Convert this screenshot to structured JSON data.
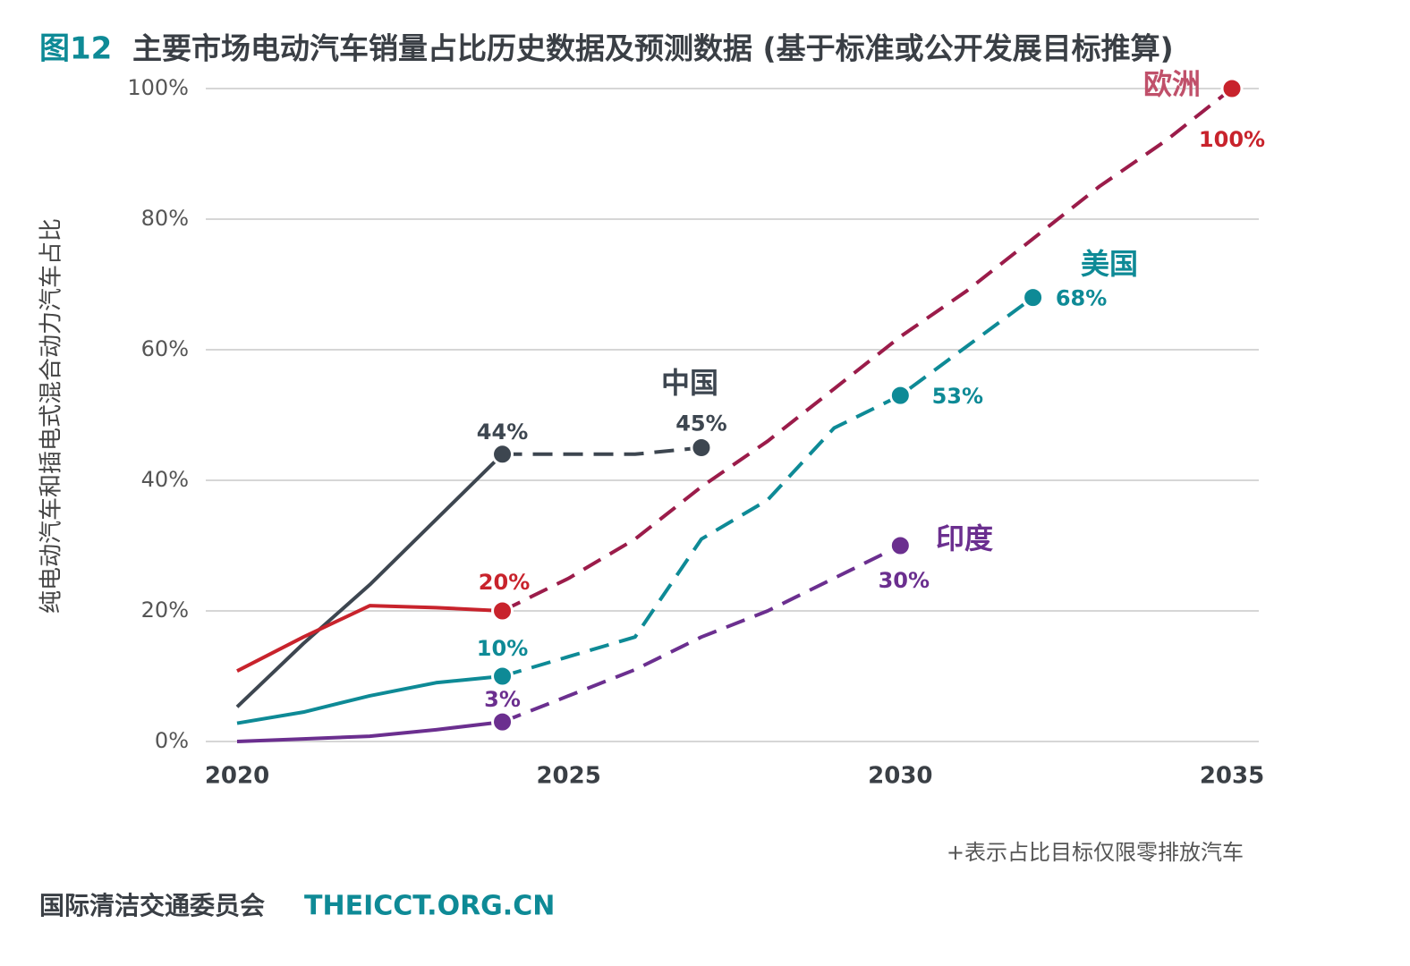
{
  "chart_data": {
    "type": "line",
    "figure_label": "图12",
    "title": "主要市场电动汽车销量占比历史数据及预测数据 (基于标准或公开发展目标推算)",
    "y_label": "纯电动汽车和插电式混合动力汽车占比",
    "note": "+表示占比目标仅限零排放汽车",
    "source": "国际清洁交通委员会",
    "source_url": "THEICCT.ORG.CN",
    "x": [
      2020,
      2021,
      2022,
      2023,
      2024,
      2025,
      2026,
      2027,
      2028,
      2029,
      2030,
      2031,
      2032,
      2033,
      2034,
      2035
    ],
    "xlim": [
      2020,
      2035
    ],
    "xticks": [
      2020,
      2025,
      2030,
      2035
    ],
    "ylim": [
      0,
      100
    ],
    "yticks": [
      {
        "value": 0,
        "label": "0%"
      },
      {
        "value": 20,
        "label": "20%"
      },
      {
        "value": 40,
        "label": "40%"
      },
      {
        "value": 60,
        "label": "60%"
      },
      {
        "value": 80,
        "label": "80%"
      },
      {
        "value": 100,
        "label": "100%"
      }
    ],
    "grid": true,
    "projected_from": 2024,
    "series": [
      {
        "name": "中国",
        "color": "#3d4650",
        "projection_color": "#3d4650",
        "values": [
          5.3,
          15,
          24,
          34,
          44,
          44,
          44,
          45,
          null,
          null,
          null,
          null,
          null,
          null,
          null,
          null
        ],
        "value_labels": [
          null,
          null,
          null,
          null,
          "44%",
          null,
          null,
          "45%",
          null,
          null,
          null,
          null,
          null,
          null,
          null,
          null
        ]
      },
      {
        "name": "欧洲",
        "color": "#c8232c",
        "projection_color": "#9b1c4a",
        "values": [
          10.8,
          16,
          20.8,
          20.5,
          20,
          25,
          31,
          39,
          46,
          54,
          62,
          69,
          77,
          85,
          92,
          100
        ],
        "value_labels": [
          null,
          null,
          null,
          null,
          "20%",
          null,
          null,
          null,
          null,
          null,
          null,
          null,
          null,
          null,
          null,
          "100%"
        ]
      },
      {
        "name": "美国",
        "color": "#0e8a96",
        "projection_color": "#0e8a96",
        "values": [
          2.8,
          4.5,
          7,
          9,
          10,
          13,
          16,
          31,
          37,
          48,
          53,
          60.5,
          68,
          null,
          null,
          null
        ],
        "value_labels": [
          null,
          null,
          null,
          null,
          "10%",
          null,
          null,
          null,
          null,
          null,
          "53%",
          null,
          "68%",
          null,
          null,
          null
        ]
      },
      {
        "name": "印度",
        "color": "#6b2f8f",
        "projection_color": "#6b2f8f",
        "values": [
          0,
          0.4,
          0.8,
          1.8,
          3,
          7,
          11,
          16,
          20,
          25,
          30,
          null,
          null,
          null,
          null,
          null
        ],
        "value_labels": [
          null,
          null,
          null,
          null,
          "3%",
          null,
          null,
          null,
          null,
          null,
          "30%",
          null,
          null,
          null,
          null,
          null
        ]
      }
    ]
  }
}
